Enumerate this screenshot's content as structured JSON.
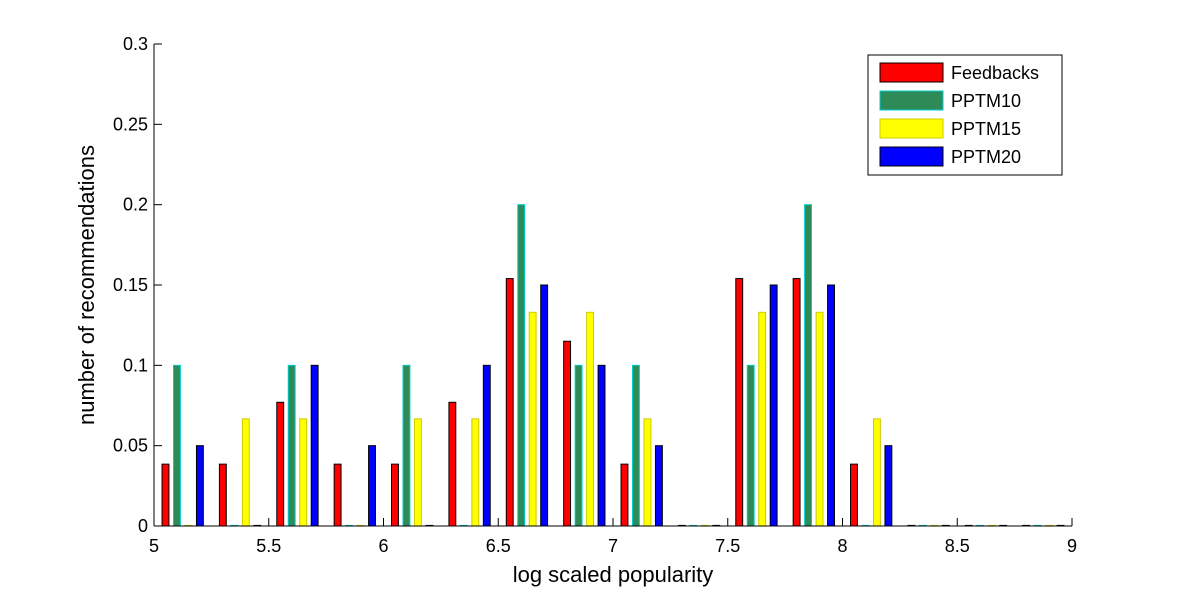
{
  "chart_data": {
    "type": "bar",
    "xlabel": "log scaled popularity",
    "ylabel": "number of recommendations",
    "xlim": [
      5,
      9
    ],
    "ylim": [
      0,
      0.3
    ],
    "x_ticks": [
      "5",
      "5.5",
      "6",
      "6.5",
      "7",
      "7.5",
      "8",
      "8.5",
      "9"
    ],
    "y_ticks": [
      "0",
      "0.05",
      "0.1",
      "0.15",
      "0.2",
      "0.25",
      "0.3"
    ],
    "grid": false,
    "legend_position": "top-right",
    "x": [
      5.125,
      5.375,
      5.625,
      5.875,
      6.125,
      6.375,
      6.625,
      6.875,
      7.125,
      7.375,
      7.625,
      7.875,
      8.125,
      8.375,
      8.625,
      8.875
    ],
    "series": [
      {
        "name": "Feedbacks",
        "color": "#ff0000",
        "edge": "#000000",
        "values": [
          0.0385,
          0.0385,
          0.077,
          0.0385,
          0.0385,
          0.077,
          0.154,
          0.115,
          0.0385,
          0,
          0.154,
          0.154,
          0.0385,
          0,
          0,
          0
        ]
      },
      {
        "name": "PPTM10",
        "color": "#2e8b57",
        "edge": "#00cccc",
        "values": [
          0.1,
          0,
          0.1,
          0,
          0.1,
          0,
          0.2,
          0.1,
          0.1,
          0,
          0.1,
          0.2,
          0,
          0,
          0,
          0
        ]
      },
      {
        "name": "PPTM15",
        "color": "#ffff00",
        "edge": "#cccc00",
        "values": [
          0,
          0.0667,
          0.0667,
          0,
          0.0667,
          0.0667,
          0.133,
          0.133,
          0.0667,
          0,
          0.133,
          0.133,
          0.0667,
          0,
          0,
          0
        ]
      },
      {
        "name": "PPTM20",
        "color": "#0000ff",
        "edge": "#000000",
        "values": [
          0.05,
          0,
          0.1,
          0.05,
          0,
          0.1,
          0.15,
          0.1,
          0.05,
          0,
          0.15,
          0.15,
          0.05,
          0,
          0,
          0
        ]
      }
    ]
  }
}
